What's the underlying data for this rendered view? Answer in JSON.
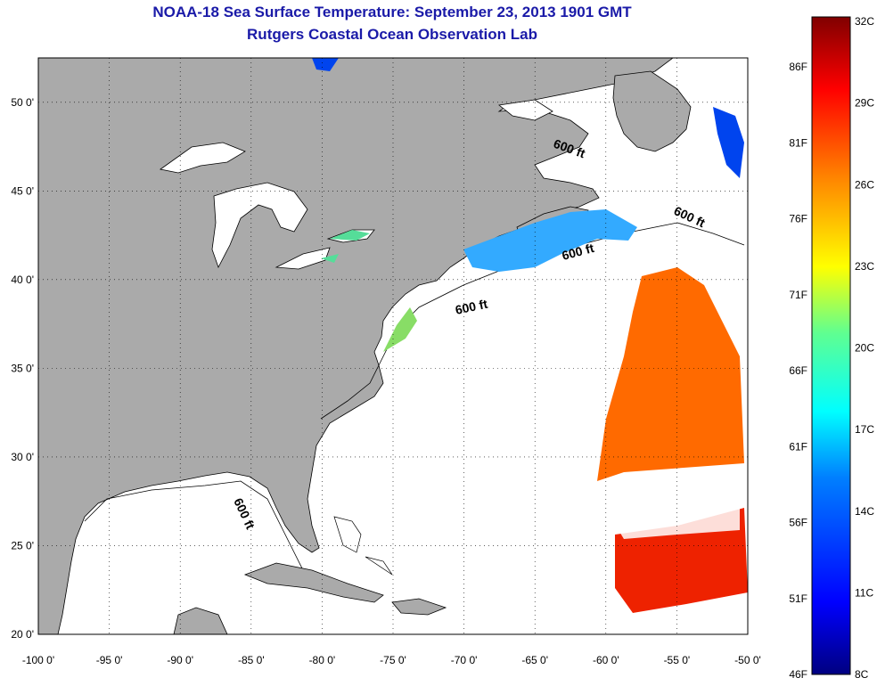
{
  "header": {
    "title": "NOAA-18 Sea Surface Temperature:  September 23, 2013 1901 GMT",
    "subtitle": "Rutgers Coastal Ocean Observation Lab"
  },
  "map": {
    "lon_range": [
      -100,
      -50
    ],
    "lat_range": [
      20,
      52.5
    ],
    "lon_ticks": [
      {
        "value": -100,
        "label": "-100 0'"
      },
      {
        "value": -95,
        "label": "-95 0'"
      },
      {
        "value": -90,
        "label": "-90 0'"
      },
      {
        "value": -85,
        "label": "-85 0'"
      },
      {
        "value": -80,
        "label": "-80 0'"
      },
      {
        "value": -75,
        "label": "-75 0'"
      },
      {
        "value": -70,
        "label": "-70 0'"
      },
      {
        "value": -65,
        "label": "-65 0'"
      },
      {
        "value": -60,
        "label": "-60 0'"
      },
      {
        "value": -55,
        "label": "-55 0'"
      },
      {
        "value": -50,
        "label": "-50 0'"
      }
    ],
    "lat_ticks": [
      {
        "value": 20,
        "label": "20 0'"
      },
      {
        "value": 25,
        "label": "25 0'"
      },
      {
        "value": 30,
        "label": "30 0'"
      },
      {
        "value": 35,
        "label": "35 0'"
      },
      {
        "value": 40,
        "label": "40 0'"
      },
      {
        "value": 45,
        "label": "45 0'"
      },
      {
        "value": 50,
        "label": "50 0'"
      }
    ],
    "isobath_labels": [
      "600 ft",
      "600 ft",
      "600 ft",
      "600 ft",
      "600 ft"
    ],
    "colors": {
      "land": "#aaaaaa",
      "ocean": "#ffffff",
      "coast": "#000000"
    }
  },
  "colorbar": {
    "celsius_ticks": [
      "32C",
      "29C",
      "26C",
      "23C",
      "20C",
      "17C",
      "14C",
      "11C",
      "8C"
    ],
    "fahrenheit_ticks": [
      "86F",
      "81F",
      "76F",
      "71F",
      "66F",
      "61F",
      "56F",
      "51F",
      "46F"
    ],
    "colors": [
      "#000080",
      "#0000ff",
      "#0080ff",
      "#00ffff",
      "#80ff80",
      "#ffff00",
      "#ff8000",
      "#ff0000",
      "#800000"
    ]
  }
}
